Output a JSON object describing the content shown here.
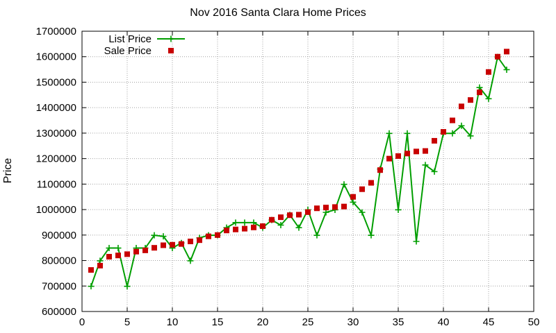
{
  "chart_data": {
    "type": "line",
    "title": "Nov 2016 Santa Clara Home Prices",
    "xlabel": "",
    "ylabel": "Price",
    "xlim": [
      0,
      50
    ],
    "ylim": [
      600000,
      1700000
    ],
    "x_ticks": [
      0,
      5,
      10,
      15,
      20,
      25,
      30,
      35,
      40,
      45,
      50
    ],
    "y_ticks": [
      600000,
      700000,
      800000,
      900000,
      1000000,
      1100000,
      1200000,
      1300000,
      1400000,
      1500000,
      1600000,
      1700000
    ],
    "grid": true,
    "legend_position": "top-left",
    "x": [
      1,
      2,
      3,
      4,
      5,
      6,
      7,
      8,
      9,
      10,
      11,
      12,
      13,
      14,
      15,
      16,
      17,
      18,
      19,
      20,
      21,
      22,
      23,
      24,
      25,
      26,
      27,
      28,
      29,
      30,
      31,
      32,
      33,
      34,
      35,
      36,
      37,
      38,
      39,
      40,
      41,
      42,
      43,
      44,
      45,
      46,
      47
    ],
    "series": [
      {
        "name": "List Price",
        "style": "linespoints",
        "color": "#009e00",
        "values": [
          699000,
          799000,
          849000,
          849000,
          699000,
          849000,
          849000,
          899000,
          895000,
          849000,
          869000,
          799000,
          889000,
          899000,
          899000,
          929000,
          949000,
          949000,
          949000,
          929000,
          959000,
          939000,
          979000,
          929000,
          999000,
          899000,
          989000,
          999000,
          1099000,
          1029000,
          989000,
          899000,
          1159000,
          1299000,
          999000,
          1299000,
          875000,
          1175000,
          1149000,
          1299000,
          1299000,
          1329000,
          1289000,
          1479000,
          1435000,
          1599000,
          1549000
        ]
      },
      {
        "name": "Sale Price",
        "style": "points",
        "color": "#c80000",
        "values": [
          763000,
          780000,
          815000,
          820000,
          825000,
          835000,
          840000,
          850000,
          860000,
          862000,
          865000,
          875000,
          880000,
          895000,
          900000,
          918000,
          922000,
          925000,
          930000,
          935000,
          960000,
          970000,
          978000,
          980000,
          990000,
          1005000,
          1008000,
          1010000,
          1012000,
          1050000,
          1080000,
          1105000,
          1155000,
          1200000,
          1210000,
          1220000,
          1228000,
          1230000,
          1270000,
          1305000,
          1350000,
          1405000,
          1430000,
          1460000,
          1540000,
          1600000,
          1620000
        ]
      }
    ]
  }
}
